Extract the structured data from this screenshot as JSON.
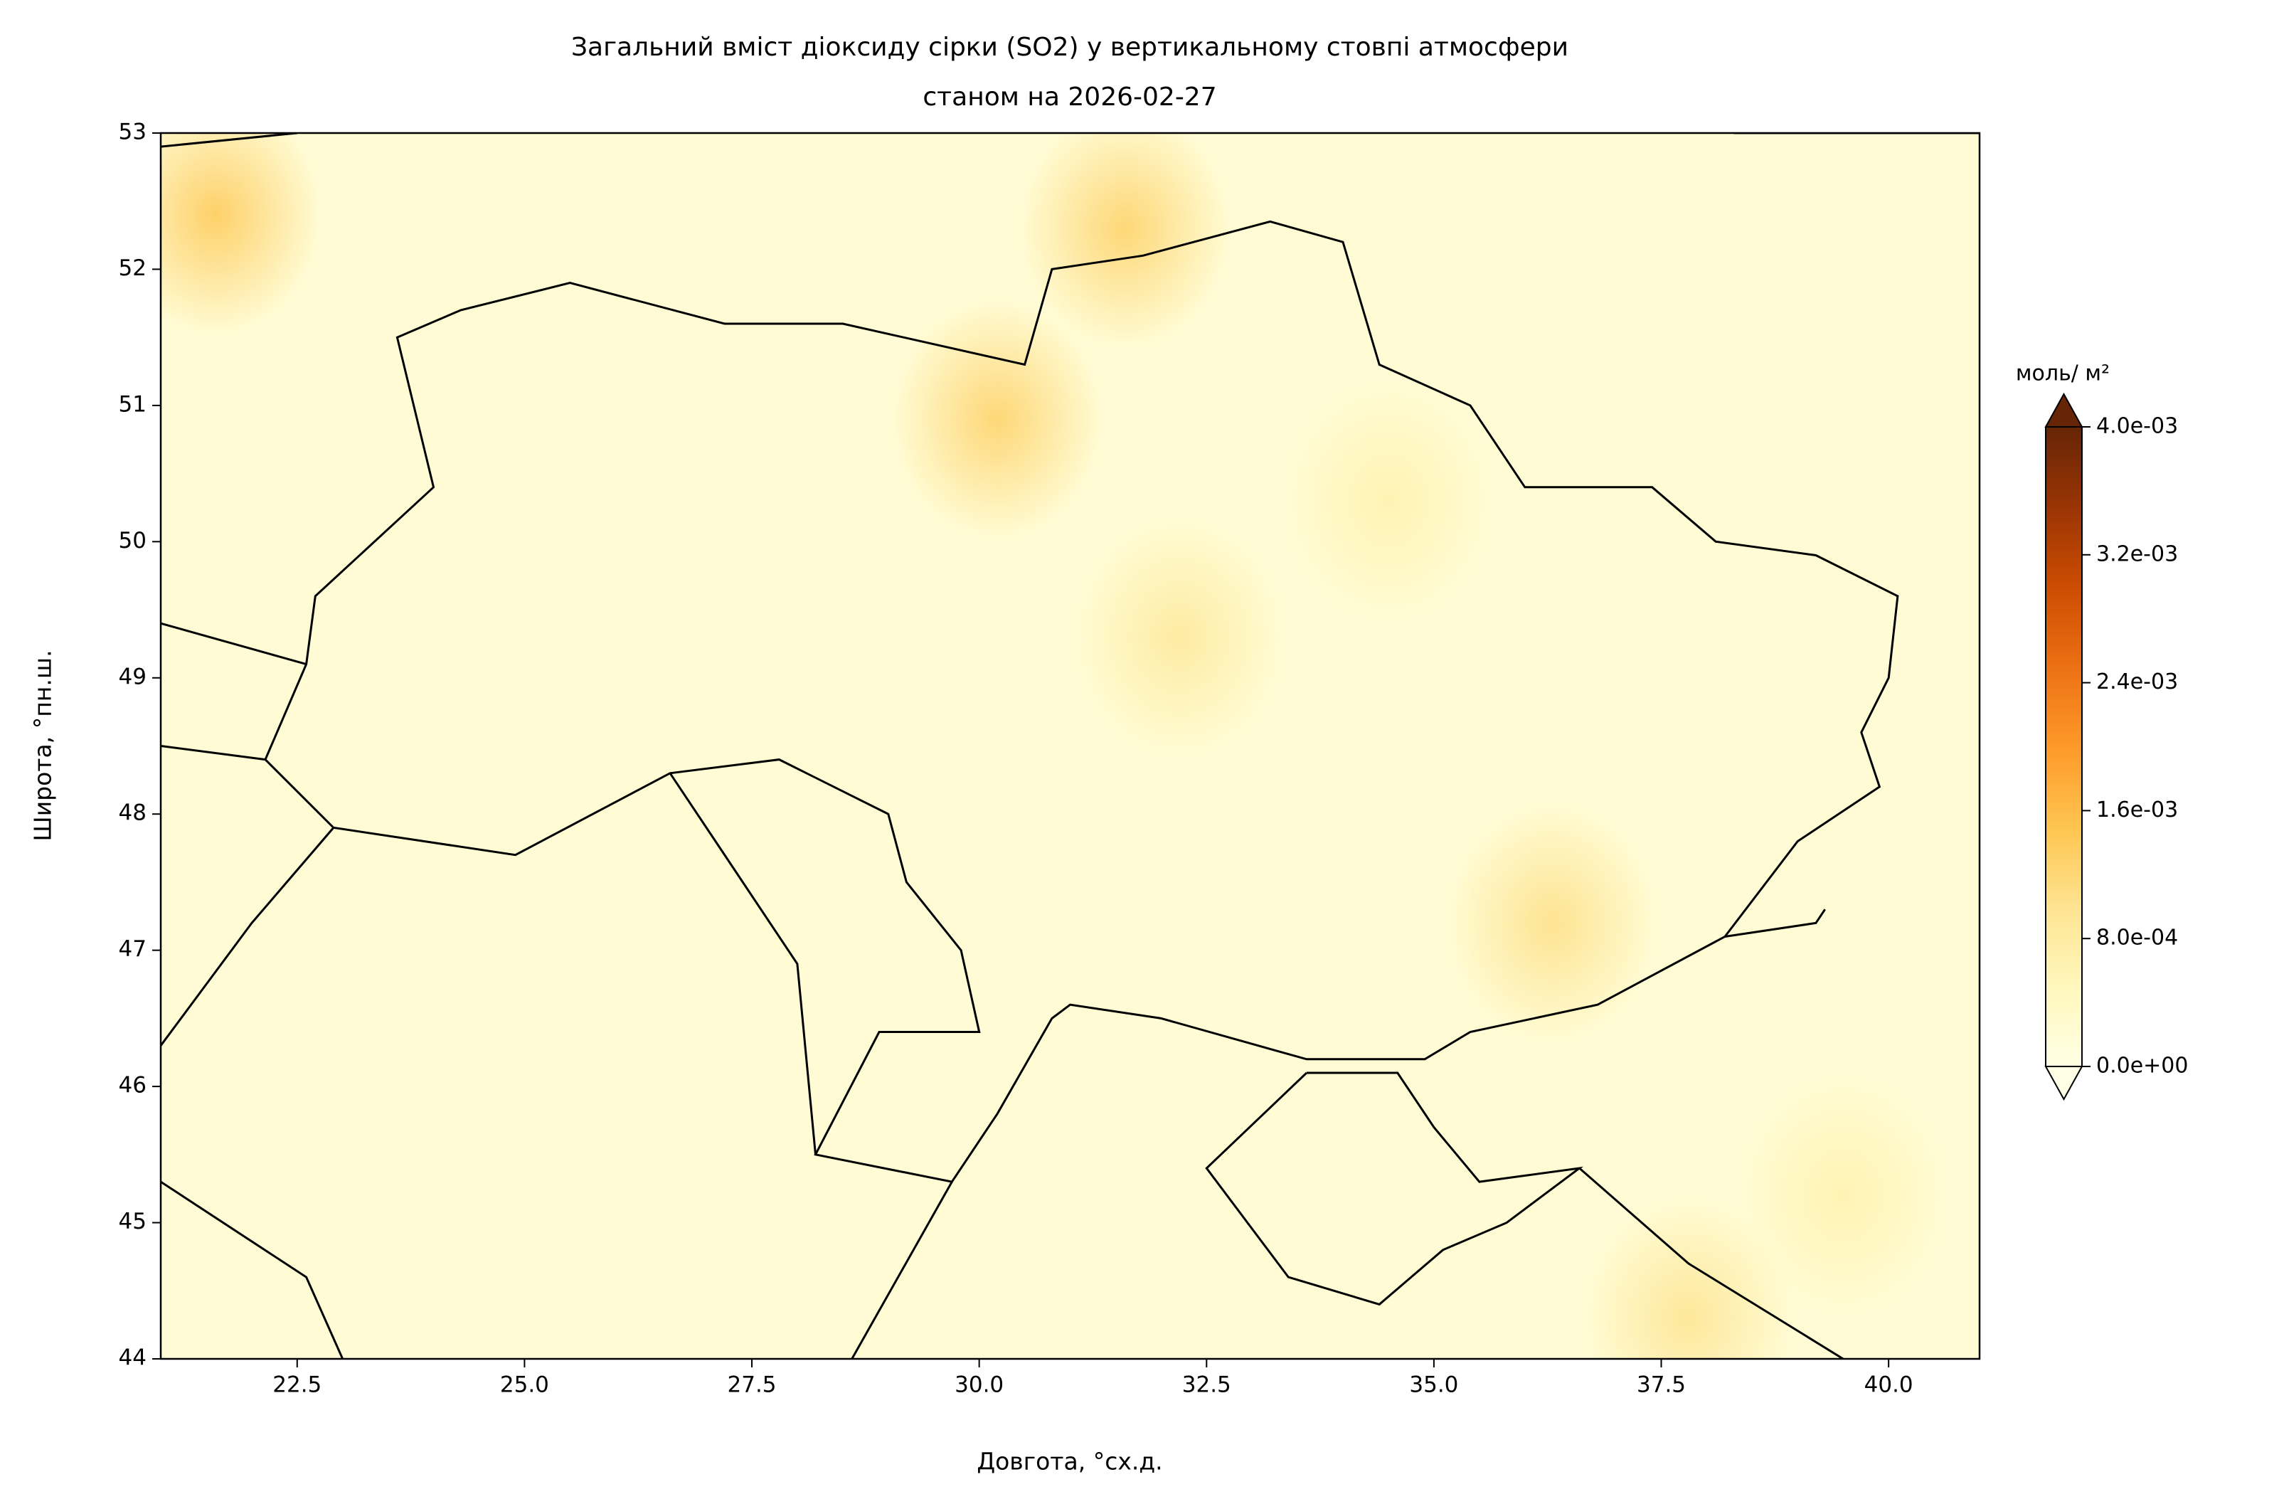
{
  "chart_data": {
    "type": "map",
    "title": [
      "Загальний вміст діоксиду сірки (SO2) у вертикальному стовпі атмосфери",
      "станом на 2026-02-27"
    ],
    "xlabel": "Довгота, °сх.д.",
    "ylabel": "Широта, °пн.ш.",
    "xlim": [
      21,
      41
    ],
    "ylim": [
      44,
      53
    ],
    "xticks": [
      22.5,
      {
        "value": 25,
        "label": "25.0"
      },
      27.5,
      {
        "value": 30,
        "label": "30.0"
      },
      32.5,
      {
        "value": 35,
        "label": "35.0"
      },
      37.5,
      {
        "value": 40,
        "label": "40.0"
      }
    ],
    "yticks": [
      44,
      45,
      46,
      47,
      48,
      49,
      50,
      51,
      52,
      53
    ],
    "colorbar": {
      "label": "моль/ м²",
      "clim": [
        0,
        0.004
      ],
      "extend": "both",
      "colors": [
        "#ffffe5",
        "#fff7bc",
        "#fee391",
        "#fec44f",
        "#fe9929",
        "#ec7014",
        "#cc4c02",
        "#993404",
        "#662506"
      ],
      "ticks": [
        {
          "value": 0,
          "label": "0.0e+00"
        },
        {
          "value": 0.0008,
          "label": "8.0e-04"
        },
        {
          "value": 0.0016,
          "label": "1.6e-03"
        },
        {
          "value": 0.0024,
          "label": "2.4e-03"
        },
        {
          "value": 0.0032,
          "label": "3.2e-03"
        },
        {
          "value": 0.004,
          "label": "4.0e-03"
        }
      ]
    },
    "background_value": 0.0002,
    "hotspots": [
      {
        "lon": 21.6,
        "lat": 52.4,
        "value": 0.0013
      },
      {
        "lon": 30.2,
        "lat": 50.9,
        "value": 0.0012
      },
      {
        "lon": 31.6,
        "lat": 52.3,
        "value": 0.0012
      },
      {
        "lon": 32.2,
        "lat": 49.3,
        "value": 0.0008
      },
      {
        "lon": 36.3,
        "lat": 47.2,
        "value": 0.001
      },
      {
        "lon": 37.8,
        "lat": 44.3,
        "value": 0.0009
      },
      {
        "lon": 34.5,
        "lat": 50.3,
        "value": 0.0006
      },
      {
        "lon": 39.5,
        "lat": 45.2,
        "value": 0.0006
      }
    ]
  }
}
